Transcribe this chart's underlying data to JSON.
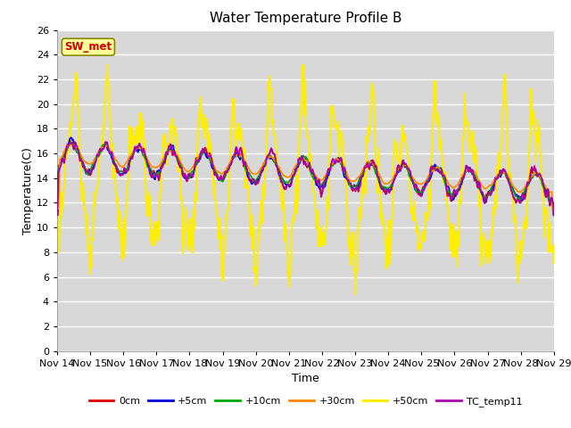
{
  "title": "Water Temperature Profile B",
  "xlabel": "Time",
  "ylabel": "Temperature(C)",
  "ylim": [
    0,
    26
  ],
  "yticks": [
    0,
    2,
    4,
    6,
    8,
    10,
    12,
    14,
    16,
    18,
    20,
    22,
    24,
    26
  ],
  "n_days": 15,
  "bg_color": "#d8d8d8",
  "fig_color": "#ffffff",
  "annotation_text": "SW_met",
  "annotation_bg": "#ffff99",
  "annotation_fg": "#cc0000",
  "annotation_edge": "#888800",
  "xtick_labels": [
    "Nov 14",
    "Nov 15",
    "Nov 16",
    "Nov 17",
    "Nov 18",
    "Nov 19",
    "Nov 20",
    "Nov 21",
    "Nov 22",
    "Nov 23",
    "Nov 24",
    "Nov 25",
    "Nov 26",
    "Nov 27",
    "Nov 28",
    "Nov 29"
  ],
  "legend_entries": [
    "0cm",
    "+5cm",
    "+10cm",
    "+30cm",
    "+50cm",
    "TC_temp11"
  ],
  "line_colors": [
    "#dd0000",
    "#0000dd",
    "#00aa00",
    "#ff8800",
    "#ffee00",
    "#aa00aa"
  ],
  "line_widths": [
    1.2,
    1.2,
    1.2,
    1.2,
    1.5,
    1.2
  ],
  "seed": 7
}
